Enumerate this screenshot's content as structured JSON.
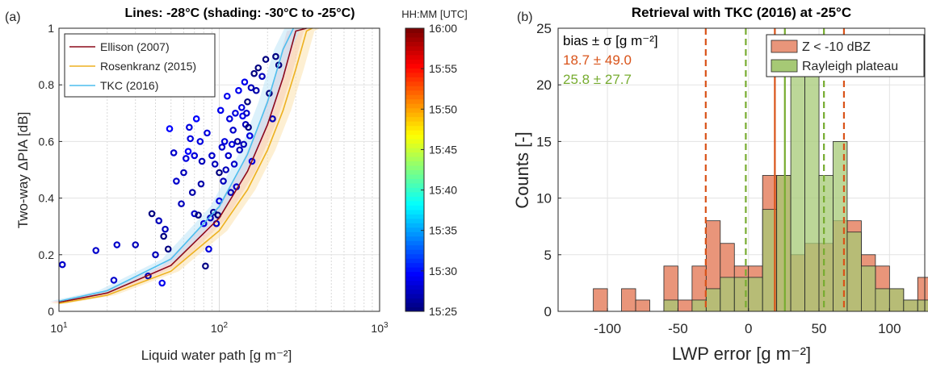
{
  "chart_data": [
    {
      "panel_label": "(a)",
      "type": "line",
      "title": "Lines: -28°C (shading: -30°C to -25°C)",
      "xlabel": "Liquid water path [g m⁻²]",
      "ylabel": "Two-way ΔPIA [dB]",
      "xscale": "log",
      "xlim": [
        10,
        1000
      ],
      "ylim": [
        0,
        1
      ],
      "x_ticks": [
        "10¹",
        "10²",
        "10³"
      ],
      "y_ticks": [
        "0",
        "0.2",
        "0.4",
        "0.6",
        "0.8",
        "1"
      ],
      "grid": true,
      "legend_placement": "top-left",
      "colorbar": {
        "label": "HH:MM [UTC]",
        "ticks": [
          "15:25",
          "15:30",
          "15:35",
          "15:40",
          "15:45",
          "15:50",
          "15:55",
          "16:00"
        ],
        "colormap": "jet"
      },
      "series": [
        {
          "name": "Ellison (2007)",
          "color": "#8B0A1A",
          "shade": "#f3b7bd",
          "x": [
            10,
            20,
            50,
            100,
            150,
            200,
            250,
            300,
            350
          ],
          "y": [
            0.032,
            0.065,
            0.162,
            0.33,
            0.495,
            0.66,
            0.826,
            0.99,
            1.0
          ]
        },
        {
          "name": "Rosenkranz (2015)",
          "color": "#EDB120",
          "shade": "#fbe2ad",
          "x": [
            10,
            20,
            50,
            100,
            150,
            200,
            250,
            300,
            350,
            380
          ],
          "y": [
            0.028,
            0.057,
            0.142,
            0.285,
            0.43,
            0.57,
            0.71,
            0.855,
            0.99,
            1.0
          ]
        },
        {
          "name": "TKC (2016)",
          "color": "#4DBEEE",
          "shade": "#bfe6f7",
          "x": [
            10,
            20,
            50,
            100,
            150,
            200,
            250,
            290
          ],
          "y": [
            0.036,
            0.073,
            0.185,
            0.37,
            0.555,
            0.74,
            0.925,
            1.0
          ]
        }
      ],
      "scatter_points": [
        [
          10.5,
          0.165,
          15.46
        ],
        [
          17,
          0.215,
          15.46
        ],
        [
          22,
          0.11,
          15.46
        ],
        [
          23,
          0.235,
          15.46
        ],
        [
          30,
          0.235,
          15.45
        ],
        [
          36,
          0.125,
          15.45
        ],
        [
          38,
          0.345,
          15.33
        ],
        [
          40,
          0.2,
          15.45
        ],
        [
          42,
          0.32,
          15.45
        ],
        [
          44,
          0.1,
          15.48
        ],
        [
          45,
          0.265,
          15.33
        ],
        [
          46,
          0.29,
          15.45
        ],
        [
          48,
          0.22,
          15.33
        ],
        [
          49,
          0.645,
          15.49
        ],
        [
          52,
          0.56,
          15.46
        ],
        [
          54,
          0.46,
          15.46
        ],
        [
          58,
          0.38,
          15.45
        ],
        [
          60,
          0.49,
          15.45
        ],
        [
          62,
          0.54,
          15.47
        ],
        [
          64,
          0.565,
          15.49
        ],
        [
          65,
          0.65,
          15.47
        ],
        [
          66,
          0.61,
          15.47
        ],
        [
          68,
          0.42,
          15.44
        ],
        [
          70,
          0.345,
          15.46
        ],
        [
          70,
          0.55,
          15.47
        ],
        [
          72,
          0.68,
          15.49
        ],
        [
          74,
          0.34,
          15.38
        ],
        [
          76,
          0.6,
          15.47
        ],
        [
          77,
          0.45,
          15.44
        ],
        [
          78,
          0.53,
          15.45
        ],
        [
          80,
          0.31,
          15.47
        ],
        [
          82,
          0.16,
          15.42
        ],
        [
          84,
          0.63,
          15.47
        ],
        [
          86,
          0.22,
          15.47
        ],
        [
          88,
          0.33,
          15.45
        ],
        [
          90,
          0.55,
          15.46
        ],
        [
          92,
          0.35,
          15.43
        ],
        [
          94,
          0.52,
          15.45
        ],
        [
          96,
          0.31,
          15.46
        ],
        [
          98,
          0.34,
          15.35
        ],
        [
          100,
          0.39,
          15.47
        ],
        [
          100,
          0.49,
          15.36
        ],
        [
          102,
          0.71,
          15.48
        ],
        [
          104,
          0.58,
          15.46
        ],
        [
          106,
          0.46,
          15.45
        ],
        [
          108,
          0.6,
          15.47
        ],
        [
          110,
          0.5,
          15.45
        ],
        [
          112,
          0.76,
          15.48
        ],
        [
          114,
          0.55,
          15.46
        ],
        [
          116,
          0.68,
          15.47
        ],
        [
          118,
          0.42,
          15.45
        ],
        [
          120,
          0.59,
          15.47
        ],
        [
          122,
          0.64,
          15.46
        ],
        [
          124,
          0.52,
          15.46
        ],
        [
          126,
          0.7,
          15.47
        ],
        [
          128,
          0.44,
          15.46
        ],
        [
          130,
          0.6,
          15.44
        ],
        [
          132,
          0.78,
          15.48
        ],
        [
          134,
          0.57,
          15.45
        ],
        [
          138,
          0.72,
          15.47
        ],
        [
          140,
          0.69,
          15.48
        ],
        [
          142,
          0.59,
          15.45
        ],
        [
          144,
          0.81,
          15.48
        ],
        [
          146,
          0.66,
          15.45
        ],
        [
          148,
          0.7,
          15.46
        ],
        [
          150,
          0.74,
          15.35
        ],
        [
          152,
          0.65,
          15.33
        ],
        [
          155,
          0.62,
          15.47
        ],
        [
          158,
          0.79,
          15.45
        ],
        [
          160,
          0.53,
          15.47
        ],
        [
          165,
          0.84,
          15.38
        ],
        [
          170,
          0.78,
          15.44
        ],
        [
          175,
          0.86,
          15.35
        ],
        [
          185,
          0.83,
          15.45
        ],
        [
          195,
          0.89,
          15.33
        ],
        [
          205,
          0.77,
          15.34
        ],
        [
          215,
          0.68,
          15.45
        ],
        [
          225,
          0.9,
          15.33
        ],
        [
          235,
          0.87,
          15.33
        ]
      ]
    },
    {
      "panel_label": "(b)",
      "type": "bar",
      "title": "Retrieval with TKC (2016) at -25°C",
      "xlabel": "LWP error [g m⁻²]",
      "ylabel": "Counts [-]",
      "xlim": [
        -135,
        125
      ],
      "ylim": [
        0,
        25
      ],
      "x_ticks": [
        -100,
        -50,
        0,
        50,
        100
      ],
      "y_ticks": [
        0,
        5,
        10,
        15,
        20,
        25
      ],
      "grid": true,
      "legend_placement": "top-right",
      "bin_width": 10,
      "bin_start": -120,
      "stats_header": "bias ± σ [g m⁻²]",
      "series": [
        {
          "name": "Z < -10 dBZ",
          "color": "#D95319",
          "fill": "#e9957a",
          "stat": "18.7 ± 49.0",
          "bias": 18.7,
          "sigma": 49.0,
          "values": [
            0,
            2,
            0,
            2,
            1,
            0,
            4,
            1,
            4,
            8,
            6,
            4,
            4,
            12,
            12,
            5,
            6,
            6,
            8,
            8,
            5,
            4,
            2,
            1,
            3
          ]
        },
        {
          "name": "Rayleigh plateau",
          "color": "#77AC30",
          "fill": "#a6c975",
          "stat": "25.8 ± 27.7",
          "bias": 25.8,
          "sigma": 27.7,
          "values": [
            0,
            0,
            0,
            0,
            0,
            0,
            1,
            0,
            1,
            2,
            3,
            3,
            3,
            9,
            12,
            21,
            22,
            12,
            15,
            7,
            4,
            2,
            2,
            1,
            1
          ]
        }
      ]
    }
  ]
}
